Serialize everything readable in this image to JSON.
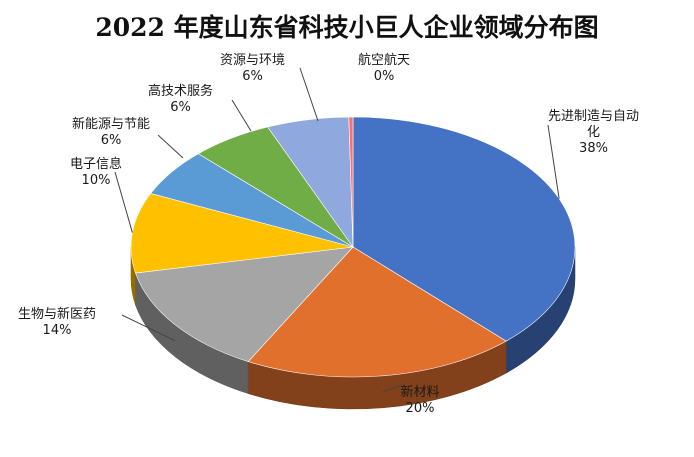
{
  "chart_data": {
    "type": "pie",
    "title": "2022 年度山东省科技小巨人企业领域分布图",
    "categories": [
      "先进制造与自动化",
      "新材料",
      "生物与新医药",
      "电子信息",
      "新能源与节能",
      "高技术服务",
      "资源与环境",
      "航空航天"
    ],
    "values": [
      38,
      20,
      14,
      10,
      6,
      6,
      6,
      0.3
    ],
    "value_labels": [
      "38%",
      "20%",
      "14%",
      "10%",
      "6%",
      "6%",
      "6%",
      "0%"
    ],
    "colors": [
      "#4472c4",
      "#e0702c",
      "#a5a5a5",
      "#ffc000",
      "#5b9bd5",
      "#70ad47",
      "#8fa9de",
      "#ff6f6f"
    ],
    "style": "3d",
    "legend": "none",
    "labels": "outside with leader lines"
  }
}
